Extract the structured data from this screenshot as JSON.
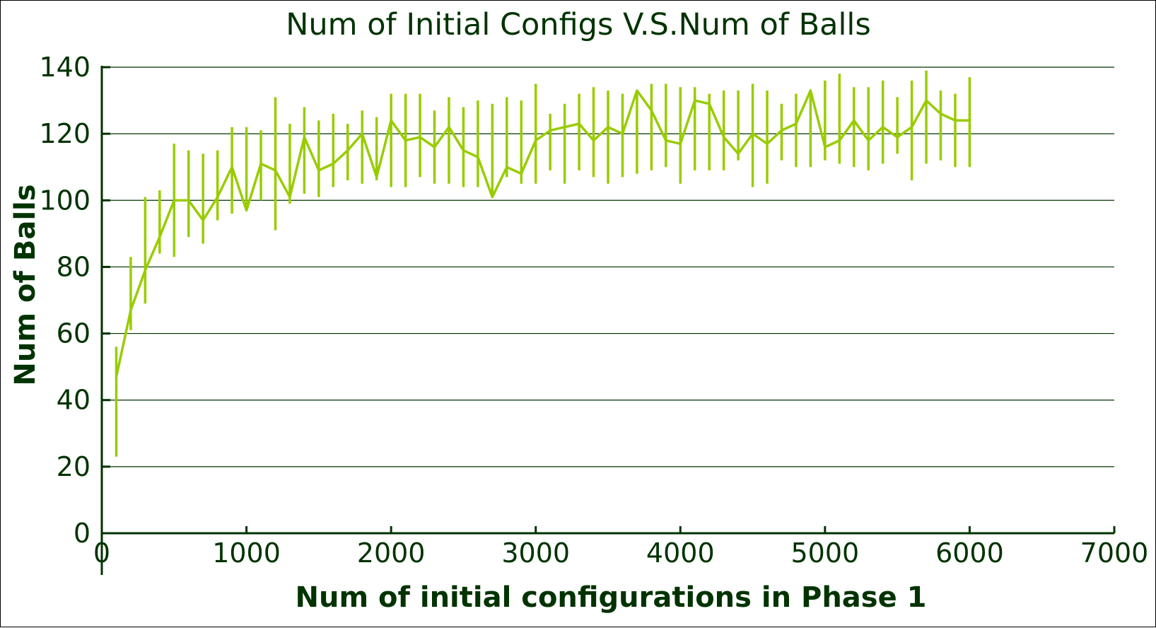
{
  "colors": {
    "text": "#003300",
    "axis": "#003300",
    "grid": "#003300",
    "series": "#99cc00"
  },
  "chart_data": {
    "type": "line",
    "title": "Num of Initial Configs V.S.Num of Balls",
    "xlabel": "Num of initial configurations in Phase 1",
    "ylabel": "Num of Balls",
    "xlim": [
      0,
      7000
    ],
    "ylim": [
      0,
      140
    ],
    "xticks": [
      0,
      1000,
      2000,
      3000,
      4000,
      5000,
      6000,
      7000
    ],
    "yticks": [
      0,
      20,
      40,
      60,
      80,
      100,
      120,
      140
    ],
    "grid": "horizontal",
    "error_bars": true,
    "x": [
      100,
      200,
      300,
      400,
      500,
      600,
      700,
      800,
      900,
      1000,
      1100,
      1200,
      1300,
      1400,
      1500,
      1600,
      1700,
      1800,
      1900,
      2000,
      2100,
      2200,
      2300,
      2400,
      2500,
      2600,
      2700,
      2800,
      2900,
      3000,
      3100,
      3200,
      3300,
      3400,
      3500,
      3600,
      3700,
      3800,
      3900,
      4000,
      4100,
      4200,
      4300,
      4400,
      4500,
      4600,
      4700,
      4800,
      4900,
      5000,
      5100,
      5200,
      5300,
      5400,
      5500,
      5600,
      5700,
      5800,
      5900,
      6000
    ],
    "series": [
      {
        "values": [
          47,
          67,
          79,
          89,
          100,
          100,
          94,
          101,
          110,
          97,
          111,
          109,
          101,
          119,
          109,
          111,
          115,
          120,
          107,
          124,
          118,
          119,
          116,
          122,
          115,
          113,
          101,
          110,
          108,
          118,
          121,
          122,
          123,
          118,
          122,
          120,
          133,
          127,
          118,
          117,
          130,
          129,
          119,
          114,
          120,
          117,
          121,
          123,
          133,
          116,
          118,
          124,
          118,
          122,
          119,
          122,
          130,
          126,
          124,
          124
        ],
        "errors": [
          [
            23,
            56
          ],
          [
            61,
            83
          ],
          [
            69,
            101
          ],
          [
            84,
            103
          ],
          [
            83,
            117
          ],
          [
            89,
            115
          ],
          [
            87,
            114
          ],
          [
            94,
            115
          ],
          [
            96,
            122
          ],
          [
            98,
            122
          ],
          [
            100,
            121
          ],
          [
            91,
            131
          ],
          [
            99,
            123
          ],
          [
            102,
            128
          ],
          [
            101,
            124
          ],
          [
            104,
            126
          ],
          [
            106,
            123
          ],
          [
            105,
            127
          ],
          [
            106,
            125
          ],
          [
            104,
            132
          ],
          [
            104,
            132
          ],
          [
            107,
            132
          ],
          [
            105,
            127
          ],
          [
            105,
            131
          ],
          [
            104,
            128
          ],
          [
            104,
            130
          ],
          [
            102,
            129
          ],
          [
            107,
            131
          ],
          [
            105,
            130
          ],
          [
            105,
            135
          ],
          [
            109,
            126
          ],
          [
            105,
            129
          ],
          [
            109,
            132
          ],
          [
            107,
            134
          ],
          [
            105,
            133
          ],
          [
            107,
            132
          ],
          [
            108,
            133
          ],
          [
            109,
            135
          ],
          [
            110,
            135
          ],
          [
            105,
            134
          ],
          [
            109,
            134
          ],
          [
            109,
            132
          ],
          [
            109,
            133
          ],
          [
            112,
            133
          ],
          [
            104,
            135
          ],
          [
            105,
            133
          ],
          [
            112,
            129
          ],
          [
            110,
            132
          ],
          [
            110,
            133
          ],
          [
            112,
            136
          ],
          [
            111,
            138
          ],
          [
            110,
            134
          ],
          [
            109,
            134
          ],
          [
            111,
            136
          ],
          [
            114,
            131
          ],
          [
            106,
            136
          ],
          [
            111,
            139
          ],
          [
            112,
            133
          ],
          [
            110,
            132
          ],
          [
            110,
            137
          ]
        ]
      }
    ]
  }
}
